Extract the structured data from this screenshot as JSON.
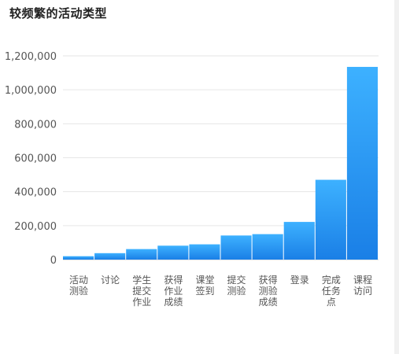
{
  "title": "较频繁的活动类型",
  "chart_data": {
    "type": "bar",
    "title": "较频繁的活动类型",
    "xlabel": "",
    "ylabel": "",
    "categories": [
      "活动\n测验",
      "讨论",
      "学生\n提交\n作业",
      "获得\n作业\n成绩",
      "课堂\n签到",
      "提交\n测验",
      "获得\n测验\n成绩",
      "登录",
      "完成\n任务\n点",
      "课程\n访问"
    ],
    "values": [
      20000,
      38000,
      62000,
      82000,
      90000,
      142000,
      150000,
      222000,
      470000,
      1135000
    ],
    "ylim": [
      0,
      1200000
    ],
    "yticks": [
      "0",
      "200,000",
      "400,000",
      "600,000",
      "800,000",
      "1,000,000",
      "1,200,000"
    ],
    "grid": true,
    "legend": "none",
    "colors": {
      "bar_top": "#3db1ff",
      "bar_bottom": "#1a7fe6",
      "grid": "#e6e6e6",
      "axis": "#cccccc"
    }
  }
}
